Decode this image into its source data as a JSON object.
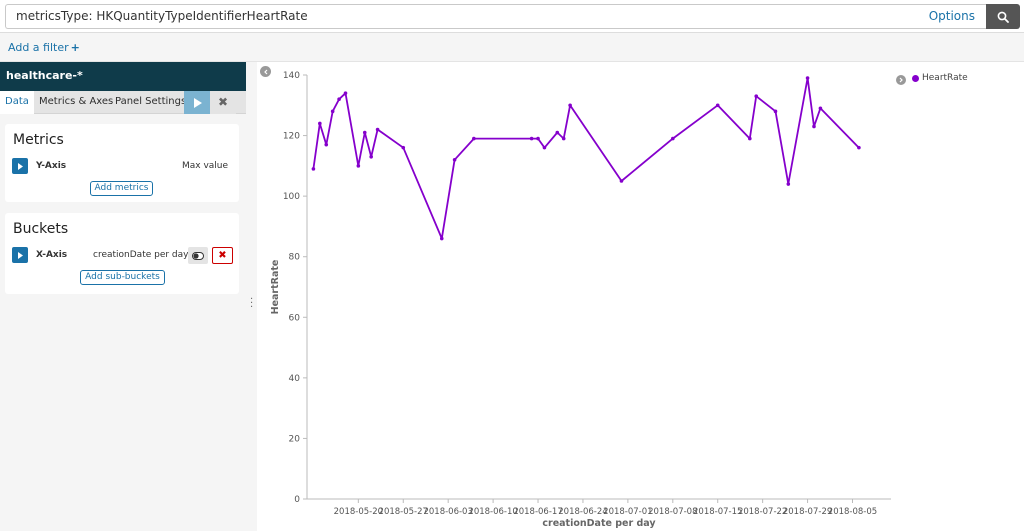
{
  "query": {
    "text": "metricsType: HKQuantityTypeIdentifierHeartRate",
    "options_label": "Options",
    "search_icon": "search-icon"
  },
  "filter": {
    "add_label": "Add a filter",
    "plus": "+"
  },
  "sidebar": {
    "index_pattern": "healthcare-*",
    "tabs": [
      "Data",
      "Metrics & Axes",
      "Panel Settings"
    ],
    "metrics": {
      "title": "Metrics",
      "agg_label": "Y-Axis",
      "agg_desc": "Max value",
      "add_button": "Add metrics"
    },
    "buckets": {
      "title": "Buckets",
      "agg_label": "X-Axis",
      "agg_desc": "creationDate per day",
      "add_button": "Add sub-buckets"
    }
  },
  "colors": {
    "series": "#8500cc",
    "accent": "#1a72a8",
    "header": "#0f3b4a"
  },
  "chart_data": {
    "type": "line",
    "xlabel": "creationDate per day",
    "ylabel": "HeartRate",
    "ylim": [
      0,
      140
    ],
    "y_ticks": [
      0,
      20,
      40,
      60,
      80,
      100,
      120,
      140
    ],
    "x_ticks": [
      "2018-05-20",
      "2018-05-27",
      "2018-06-03",
      "2018-06-10",
      "2018-06-17",
      "2018-06-24",
      "2018-07-01",
      "2018-07-08",
      "2018-07-15",
      "2018-07-22",
      "2018-07-29",
      "2018-08-05"
    ],
    "grid": false,
    "legend_position": "top-right",
    "series": [
      {
        "name": "HeartRate",
        "x": [
          "2018-05-13",
          "2018-05-14",
          "2018-05-15",
          "2018-05-16",
          "2018-05-17",
          "2018-05-18",
          "2018-05-20",
          "2018-05-21",
          "2018-05-22",
          "2018-05-23",
          "2018-05-27",
          "2018-06-02",
          "2018-06-04",
          "2018-06-07",
          "2018-06-16",
          "2018-06-17",
          "2018-06-18",
          "2018-06-20",
          "2018-06-21",
          "2018-06-22",
          "2018-06-30",
          "2018-07-08",
          "2018-07-15",
          "2018-07-20",
          "2018-07-21",
          "2018-07-24",
          "2018-07-26",
          "2018-07-29",
          "2018-07-30",
          "2018-07-31",
          "2018-08-06"
        ],
        "values": [
          109,
          124,
          117,
          128,
          132,
          134,
          110,
          121,
          113,
          122,
          116,
          86,
          112,
          119,
          119,
          119,
          116,
          121,
          119,
          130,
          105,
          119,
          130,
          119,
          133,
          128,
          104,
          139,
          123,
          129,
          116
        ]
      }
    ]
  }
}
